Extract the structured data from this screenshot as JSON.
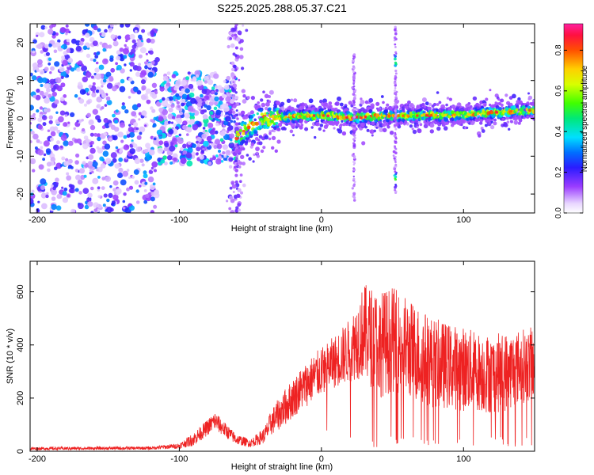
{
  "title": "S225.2025.288.05.37.C21",
  "colors": {
    "snr_line": "#ee2222",
    "frame": "#000000",
    "axis_text": "#000000",
    "background": "#ffffff"
  },
  "chart_data": [
    {
      "type": "heatmap",
      "name": "spectrogram",
      "xlabel": "Height of straight line (km)",
      "ylabel": "Frequency (Hz)",
      "xlim": [
        -205,
        150
      ],
      "ylim": [
        -25,
        25
      ],
      "xticks": [
        -200,
        -100,
        0,
        100
      ],
      "yticks": [
        -20,
        -10,
        0,
        10,
        20
      ],
      "colorbar": {
        "label": "Normalized spectral amplitude",
        "range": [
          0.0,
          0.93
        ],
        "ticks": [
          0.0,
          0.2,
          0.4,
          0.6,
          0.8
        ],
        "colormap": "rainbow"
      },
      "features": [
        {
          "kind": "noise",
          "x_range": [
            -205,
            -115
          ],
          "freq_range": [
            -25,
            25
          ],
          "amplitude": [
            0.05,
            0.35
          ]
        },
        {
          "kind": "noise",
          "x_range": [
            -115,
            -60
          ],
          "freq_range": [
            -12,
            12
          ],
          "amplitude": [
            0.05,
            0.45
          ]
        },
        {
          "kind": "noise_column",
          "x": -60,
          "freq_range": [
            -25,
            25
          ],
          "amplitude": [
            0.05,
            0.2
          ]
        },
        {
          "kind": "ridge",
          "x": [
            -60,
            -50,
            -40,
            -30,
            -20,
            0,
            20,
            40,
            60,
            80,
            100,
            120,
            150
          ],
          "freq": [
            -5,
            -2,
            0,
            0.3,
            0.5,
            0.8,
            0.2,
            0.6,
            0.7,
            0.8,
            1.0,
            1.5,
            2.2
          ],
          "peak_amplitude": 0.85
        },
        {
          "kind": "spike",
          "x": 52,
          "freq_range": [
            -20,
            25
          ],
          "peak_freq": [
            -16,
            15
          ],
          "amplitude": 0.4
        },
        {
          "kind": "spike",
          "x": 23,
          "freq_range": [
            -22,
            17
          ],
          "amplitude": 0.15
        }
      ]
    },
    {
      "type": "line",
      "name": "snr",
      "xlabel": "Height of straight line (km)",
      "ylabel": "SNR (10 * v/v)",
      "xlim": [
        -205,
        150
      ],
      "ylim": [
        0,
        715
      ],
      "xticks": [
        -200,
        -100,
        0,
        100
      ],
      "yticks": [
        0,
        200,
        400,
        600
      ],
      "series": [
        {
          "name": "SNR",
          "envelope": {
            "x": [
              -205,
              -120,
              -100,
              -90,
              -80,
              -75,
              -70,
              -60,
              -50,
              -40,
              -35,
              -25,
              -15,
              -5,
              0,
              10,
              20,
              25,
              30,
              35,
              40,
              50,
              60,
              70,
              80,
              90,
              100,
              110,
              120,
              130,
              140,
              150
            ],
            "center": [
              10,
              12,
              20,
              45,
              90,
              115,
              90,
              45,
              30,
              60,
              110,
              170,
              230,
              280,
              300,
              340,
              380,
              420,
              450,
              430,
              400,
              420,
              390,
              360,
              330,
              320,
              310,
              300,
              290,
              300,
              320,
              330
            ],
            "spread": [
              6,
              6,
              10,
              25,
              30,
              35,
              30,
              20,
              15,
              30,
              50,
              70,
              80,
              90,
              90,
              100,
              120,
              150,
              180,
              190,
              200,
              200,
              190,
              180,
              170,
              160,
              160,
              150,
              150,
              150,
              140,
              140
            ]
          }
        }
      ]
    }
  ]
}
